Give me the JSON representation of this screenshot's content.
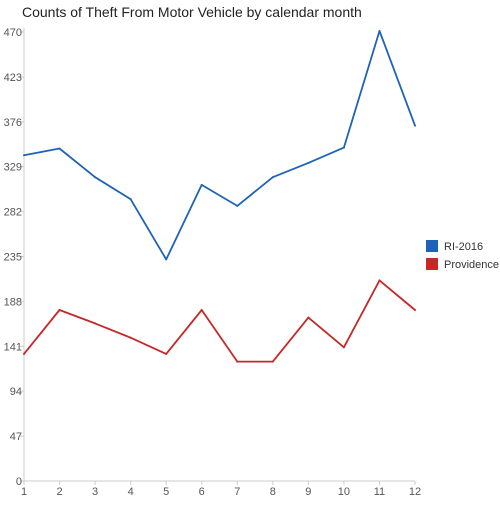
{
  "chart_data": {
    "type": "line",
    "title": "Counts of Theft From Motor Vehicle by calendar month",
    "xlabel": "",
    "ylabel": "",
    "categories": [
      "1",
      "2",
      "3",
      "4",
      "5",
      "6",
      "7",
      "8",
      "9",
      "10",
      "11",
      "12"
    ],
    "ylim": [
      0,
      470
    ],
    "yticks": [
      "0",
      "47",
      "94",
      "141",
      "188",
      "235",
      "282",
      "329",
      "376",
      "423",
      "470"
    ],
    "grid": false,
    "legend_position": "right",
    "series": [
      {
        "name": "RI-2016",
        "color": "#1f63b8",
        "values": [
          341,
          348,
          318,
          295,
          232,
          310,
          288,
          318,
          333,
          349,
          471,
          372
        ]
      },
      {
        "name": "Providence",
        "color": "#c62828",
        "values": [
          133,
          179,
          165,
          150,
          133,
          179,
          125,
          125,
          171,
          140,
          210,
          179
        ]
      }
    ]
  }
}
